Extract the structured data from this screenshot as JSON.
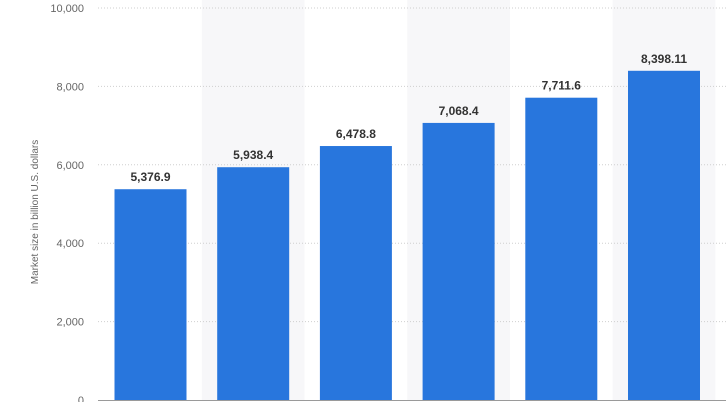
{
  "chart_data": {
    "type": "bar",
    "title": "",
    "xlabel": "",
    "ylabel": "Market size in billion U.S. dollars",
    "categories": [
      "",
      "",
      "",
      "",
      "",
      ""
    ],
    "values": [
      5376.9,
      5938.4,
      6478.8,
      7068.4,
      7711.6,
      8398.11
    ],
    "value_labels": [
      "5,376.9",
      "5,938.4",
      "6,478.8",
      "7,068.4",
      "7,711.6",
      "8,398.11"
    ],
    "ylim": [
      0,
      10000
    ],
    "yticks": [
      0,
      2000,
      4000,
      6000,
      8000,
      10000
    ],
    "ytick_labels": [
      "0",
      "2,000",
      "4,000",
      "6,000",
      "8,000",
      "10,000"
    ],
    "grid": true,
    "bar_color": "#2876dd",
    "band_color": "#f7f7f9"
  }
}
